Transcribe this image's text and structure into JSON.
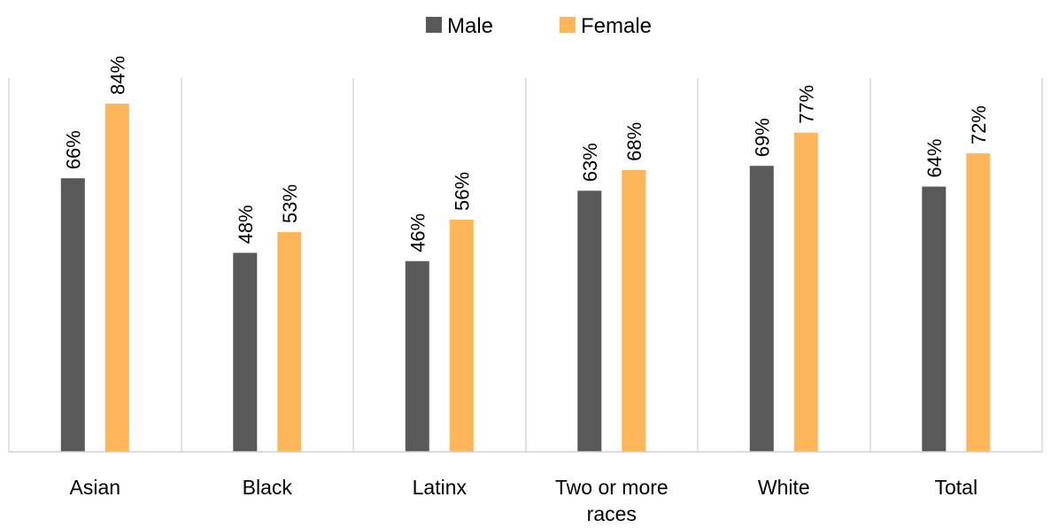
{
  "chart_data": {
    "type": "bar",
    "title": "",
    "xlabel": "",
    "ylabel": "",
    "ylim": [
      0,
      100
    ],
    "grid": false,
    "legend_position": "top-center",
    "categories": [
      [
        "Asian"
      ],
      [
        "Black"
      ],
      [
        "Latinx"
      ],
      [
        "Two or more",
        "races"
      ],
      [
        "White"
      ],
      [
        "Total"
      ]
    ],
    "series": [
      {
        "name": "Male",
        "color": "#595959",
        "values": [
          66,
          48,
          46,
          63,
          69,
          64
        ],
        "labels": [
          "66%",
          "48%",
          "46%",
          "63%",
          "69%",
          "64%"
        ]
      },
      {
        "name": "Female",
        "color": "#FFB55A",
        "values": [
          84,
          53,
          56,
          68,
          77,
          72
        ],
        "labels": [
          "84%",
          "53%",
          "56%",
          "68%",
          "77%",
          "72%"
        ]
      }
    ]
  }
}
